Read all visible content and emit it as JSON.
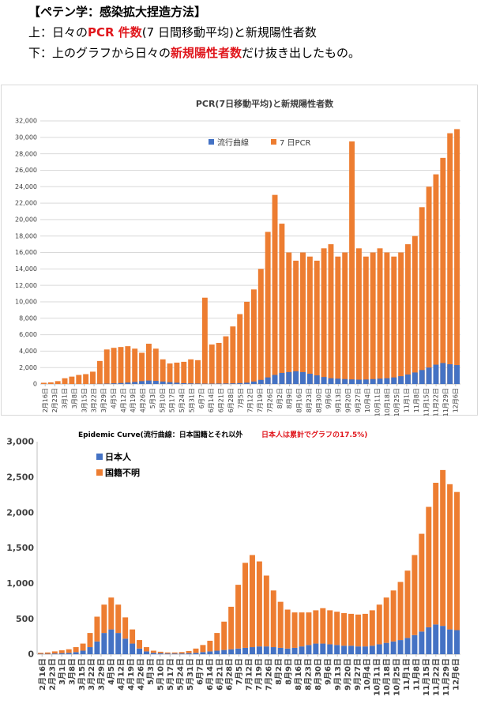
{
  "header": {
    "title": "【ペテン学：感染拡大捏造方法】",
    "line1": {
      "prefix": "上：日々の",
      "highlight": "PCR 件数",
      "suffix": "(7 日間移動平均)と新規陽性者数"
    },
    "line2": {
      "prefix": "下：上のグラフから日々の",
      "highlight": "新規陽性者数",
      "suffix": "だけ抜き出したもの。"
    }
  },
  "colors": {
    "blue": "#4472c4",
    "orange": "#ed7d31",
    "red": "#e0161c",
    "grid": "#d9d9d9",
    "axis": "#bfbfbf"
  },
  "chart_data": [
    {
      "type": "bar",
      "stacked": false,
      "title": "PCR(7日移動平均)と新規陽性者数",
      "legend_position": "top",
      "ylim": [
        0,
        32000
      ],
      "yticks": [
        "0",
        "2,000",
        "4,000",
        "6,000",
        "8,000",
        "10,000",
        "12,000",
        "14,000",
        "16,000",
        "18,000",
        "20,000",
        "22,000",
        "24,000",
        "26,000",
        "28,000",
        "30,000",
        "32,000"
      ],
      "xtick_labels": [
        "2月16日",
        "2月23日",
        "3月1日",
        "3月8日",
        "3月15日",
        "3月22日",
        "3月29日",
        "4月5日",
        "4月12日",
        "4月19日",
        "4月26日",
        "5月3日",
        "5月10日",
        "5月17日",
        "5月24日",
        "5月31日",
        "6月7日",
        "6月14日",
        "6月21日",
        "6月28日",
        "7月5日",
        "7月12日",
        "7月19日",
        "7月26日",
        "8月2日",
        "8月9日",
        "8月16日",
        "8月23日",
        "8月30日",
        "9月6日",
        "9月13日",
        "9月20日",
        "9月27日",
        "10月4日",
        "10月11日",
        "10月18日",
        "10月25日",
        "11月1日",
        "11月8日",
        "11月15日",
        "11月22日",
        "11月29日",
        "12月6日"
      ],
      "series": [
        {
          "name": "流行曲線",
          "values": [
            0,
            0,
            0,
            0,
            0,
            0,
            0,
            10,
            20,
            40,
            80,
            120,
            180,
            250,
            350,
            420,
            380,
            300,
            220,
            160,
            100,
            70,
            50,
            40,
            40,
            50,
            60,
            80,
            110,
            160,
            300,
            500,
            800,
            1100,
            1350,
            1450,
            1550,
            1450,
            1250,
            1050,
            850,
            700,
            650,
            600,
            560,
            530,
            550,
            600,
            650,
            700,
            800,
            950,
            1150,
            1400,
            1700,
            2000,
            2350,
            2550,
            2400,
            2300
          ]
        },
        {
          "name": "7 日PCR",
          "values": [
            150,
            200,
            350,
            700,
            900,
            1100,
            1200,
            1500,
            2800,
            4200,
            4400,
            4500,
            4600,
            4300,
            3800,
            4900,
            4300,
            3000,
            2500,
            2600,
            2700,
            3000,
            2900,
            10500,
            4800,
            5000,
            5800,
            7000,
            8500,
            10000,
            11500,
            14000,
            18500,
            23000,
            19500,
            16000,
            15000,
            16000,
            15500,
            15000,
            16500,
            17000,
            15500,
            16000,
            29500,
            16500,
            15500,
            16000,
            16500,
            16000,
            15500,
            16000,
            17000,
            18000,
            21500,
            24000,
            25500,
            27500,
            30500,
            31000
          ]
        }
      ]
    },
    {
      "type": "bar",
      "stacked": true,
      "title": "Epidemic Curve(流行曲線：日本国籍とそれ以外",
      "title_note": "日本人は累計でグラフの17.5%)",
      "legend_position": "top-left",
      "ylim": [
        0,
        3000
      ],
      "yticks": [
        "0",
        "500",
        "1,000",
        "1,500",
        "2,000",
        "2,500",
        "3,000"
      ],
      "xtick_labels": [
        "2月16日",
        "2月23日",
        "3月1日",
        "3月8日",
        "3月15日",
        "3月22日",
        "3月29日",
        "4月5日",
        "4月12日",
        "4月19日",
        "4月26日",
        "5月3日",
        "5月10日",
        "5月17日",
        "5月24日",
        "5月31日",
        "6月7日",
        "6月14日",
        "6月21日",
        "6月28日",
        "7月5日",
        "7月12日",
        "7月19日",
        "7月26日",
        "8月2日",
        "8月9日",
        "8月16日",
        "8月23日",
        "8月30日",
        "9月6日",
        "9月13日",
        "9月20日",
        "9月27日",
        "10月4日",
        "10月11日",
        "10月18日",
        "10月25日",
        "11月1日",
        "11月8日",
        "11月15日",
        "11月22日",
        "11月29日",
        "12月6日"
      ],
      "series": [
        {
          "name": "日本人",
          "values": [
            5,
            5,
            10,
            15,
            20,
            30,
            50,
            100,
            180,
            300,
            350,
            300,
            220,
            150,
            80,
            40,
            20,
            15,
            10,
            10,
            10,
            15,
            20,
            30,
            40,
            50,
            60,
            70,
            80,
            90,
            100,
            110,
            110,
            100,
            90,
            80,
            90,
            110,
            130,
            150,
            150,
            140,
            130,
            120,
            120,
            110,
            110,
            120,
            140,
            160,
            180,
            200,
            230,
            270,
            320,
            380,
            420,
            400,
            350,
            340
          ]
        },
        {
          "name": "国籍不明",
          "values": [
            15,
            20,
            30,
            40,
            50,
            70,
            100,
            200,
            350,
            400,
            450,
            400,
            300,
            200,
            120,
            60,
            30,
            20,
            15,
            15,
            20,
            30,
            60,
            100,
            150,
            250,
            400,
            600,
            900,
            1200,
            1300,
            1200,
            1000,
            800,
            650,
            550,
            500,
            480,
            460,
            470,
            500,
            480,
            470,
            460,
            450,
            450,
            460,
            500,
            560,
            640,
            720,
            820,
            950,
            1130,
            1380,
            1700,
            2000,
            2200,
            2050,
            1950
          ]
        }
      ]
    }
  ]
}
